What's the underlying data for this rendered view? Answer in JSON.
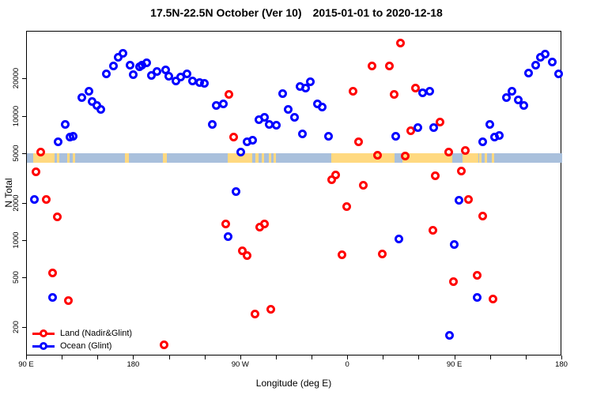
{
  "title": {
    "left": "17.5N-22.5N October (Ver 10)",
    "right": "2015-01-01 to 2020-12-18"
  },
  "chart_data": {
    "type": "scatter",
    "title": "17.5N-22.5N October (Ver 10)  2015-01-01 to 2020-12-18",
    "xlabel": "Longitude (deg E)",
    "ylabel": "N Total",
    "x_scale": "linear (longitude, spans 450 deg eastward from 90E wrapping through the dateline)",
    "y_scale": "log",
    "xlim": [
      90,
      540
    ],
    "ylim": [
      118,
      48270
    ],
    "grid": false,
    "x_major_ticks": [
      {
        "lon": 90,
        "label": "90 E"
      },
      {
        "lon": 180,
        "label": "180"
      },
      {
        "lon": 270,
        "label": "90 W"
      },
      {
        "lon": 360,
        "label": "0"
      },
      {
        "lon": 450,
        "label": "90 E"
      },
      {
        "lon": 540,
        "label": "180"
      }
    ],
    "x_minor_ticks": [
      120,
      150,
      210,
      240,
      300,
      330,
      390,
      420,
      480,
      510
    ],
    "y_ticks": [
      {
        "value": 200,
        "label": "200"
      },
      {
        "value": 500,
        "label": "500"
      },
      {
        "value": 1000,
        "label": "1000"
      },
      {
        "value": 2000,
        "label": "2000"
      },
      {
        "value": 5000,
        "label": "5000"
      },
      {
        "value": 10000,
        "label": "10000"
      },
      {
        "value": 20000,
        "label": "20000"
      }
    ],
    "legend": {
      "position": "bottom-left",
      "items": [
        {
          "label": "Land (Nadir&Glint)",
          "color": "#ff0000"
        },
        {
          "label": "Ocean (Glint)",
          "color": "#0000ff"
        }
      ]
    },
    "surface_band": {
      "description": "land/ocean map strip drawn across the plot near N=4300-5100",
      "n_top": 5070,
      "n_bottom": 4260,
      "ocean_color": "#a9c0dc",
      "land_color": "#ffd980",
      "land_segments_lon": [
        [
          95,
          113.5
        ],
        [
          115.5,
          117
        ],
        [
          124,
          126
        ],
        [
          128.5,
          130.5
        ],
        [
          172.5,
          175.5
        ],
        [
          204.5,
          207.5
        ],
        [
          259,
          279.5
        ],
        [
          282,
          285
        ],
        [
          287.5,
          289.5
        ],
        [
          293.5,
          295.5
        ],
        [
          297.5,
          299.5
        ],
        [
          346,
          399
        ],
        [
          405.5,
          447.5
        ],
        [
          456,
          469.5
        ],
        [
          470.5,
          472.5
        ],
        [
          475,
          477
        ],
        [
          481,
          483
        ]
      ]
    },
    "series": [
      {
        "name": "Land (Nadir&Glint)",
        "color": "#ff0000",
        "points": [
          [
            97.5,
            3600
          ],
          [
            101.5,
            5200
          ],
          [
            106.5,
            2140
          ],
          [
            111.5,
            550
          ],
          [
            115.5,
            1570
          ],
          [
            125,
            330
          ],
          [
            205.5,
            145
          ],
          [
            257.5,
            1360
          ],
          [
            260,
            15100
          ],
          [
            263.5,
            6800
          ],
          [
            271,
            830
          ],
          [
            275,
            760
          ],
          [
            281.5,
            260
          ],
          [
            285.5,
            1290
          ],
          [
            290,
            1370
          ],
          [
            295,
            280
          ],
          [
            346,
            3090
          ],
          [
            349.5,
            3370
          ],
          [
            355,
            770
          ],
          [
            359,
            1890
          ],
          [
            364.5,
            15900
          ],
          [
            369,
            6300
          ],
          [
            373,
            2800
          ],
          [
            380,
            25400
          ],
          [
            384.5,
            4860
          ],
          [
            389,
            790
          ],
          [
            394.5,
            25400
          ],
          [
            398.5,
            15100
          ],
          [
            404,
            38900
          ],
          [
            408,
            4790
          ],
          [
            413,
            7700
          ],
          [
            417,
            17000
          ],
          [
            431,
            1210
          ],
          [
            433.5,
            3320
          ],
          [
            437.5,
            9100
          ],
          [
            444.5,
            5200
          ],
          [
            448.5,
            470
          ],
          [
            455,
            3660
          ],
          [
            458.5,
            5300
          ],
          [
            461.5,
            2140
          ],
          [
            468.5,
            530
          ],
          [
            473,
            1590
          ],
          [
            482,
            340
          ]
        ]
      },
      {
        "name": "Ocean (Glint)",
        "color": "#0000ff",
        "points": [
          [
            96,
            2140
          ],
          [
            111.5,
            350
          ],
          [
            116.5,
            6300
          ],
          [
            122,
            8600
          ],
          [
            126,
            6800
          ],
          [
            129,
            6900
          ],
          [
            136.5,
            14300
          ],
          [
            142,
            15900
          ],
          [
            145,
            13300
          ],
          [
            149,
            12200
          ],
          [
            152,
            11500
          ],
          [
            156.5,
            22200
          ],
          [
            162.5,
            25400
          ],
          [
            166.5,
            29800
          ],
          [
            171,
            32100
          ],
          [
            176.5,
            26100
          ],
          [
            179.5,
            21900
          ],
          [
            184.5,
            25000
          ],
          [
            187,
            25900
          ],
          [
            190.5,
            26900
          ],
          [
            195,
            21300
          ],
          [
            199.5,
            22900
          ],
          [
            206.5,
            23900
          ],
          [
            209.5,
            21000
          ],
          [
            215,
            19400
          ],
          [
            219.5,
            20700
          ],
          [
            224.5,
            22200
          ],
          [
            229.5,
            19400
          ],
          [
            235,
            18800
          ],
          [
            239.5,
            18500
          ],
          [
            246,
            8600
          ],
          [
            249.5,
            12200
          ],
          [
            255,
            12600
          ],
          [
            259,
            1080
          ],
          [
            266,
            2480
          ],
          [
            269.5,
            5220
          ],
          [
            275,
            6230
          ],
          [
            279.5,
            6500
          ],
          [
            285,
            9500
          ],
          [
            289.5,
            9800
          ],
          [
            294,
            8600
          ],
          [
            299.5,
            8500
          ],
          [
            305,
            15300
          ],
          [
            309.5,
            11500
          ],
          [
            315,
            9800
          ],
          [
            319.5,
            17500
          ],
          [
            321.5,
            7300
          ],
          [
            324,
            16900
          ],
          [
            328,
            19200
          ],
          [
            334.5,
            12600
          ],
          [
            338.5,
            12000
          ],
          [
            343.5,
            6900
          ],
          [
            400,
            6900
          ],
          [
            402.5,
            1030
          ],
          [
            418.5,
            8200
          ],
          [
            423,
            15600
          ],
          [
            428.5,
            15900
          ],
          [
            432,
            8100
          ],
          [
            445,
            175
          ],
          [
            449,
            940
          ],
          [
            453,
            2110
          ],
          [
            468.5,
            350
          ],
          [
            473.5,
            6230
          ],
          [
            479,
            8600
          ],
          [
            483,
            6860
          ],
          [
            487,
            7060
          ],
          [
            493,
            14200
          ],
          [
            498,
            16100
          ],
          [
            503,
            13700
          ],
          [
            507.5,
            12200
          ],
          [
            511.5,
            22400
          ],
          [
            517.5,
            25900
          ],
          [
            522,
            29800
          ],
          [
            526,
            31700
          ],
          [
            532,
            27300
          ],
          [
            537,
            22200
          ]
        ]
      }
    ]
  }
}
